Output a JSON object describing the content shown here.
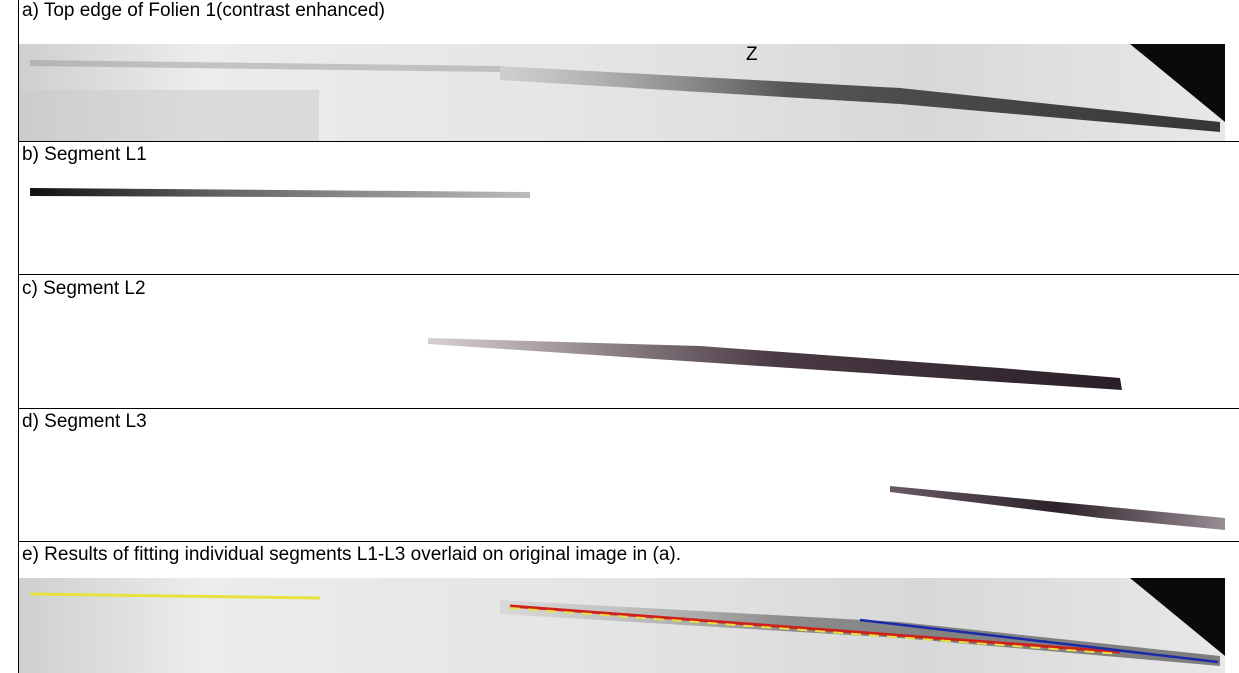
{
  "panels": [
    {
      "label": "a) Top edge of Folien 1(contrast enhanced)",
      "annotation": "Z"
    },
    {
      "label": "b) Segment L1"
    },
    {
      "label": "c) Segment L2"
    },
    {
      "label": "d) Segment L3"
    },
    {
      "label": "e) Results of fitting individual segments L1-L3 overlaid on original image in (a)."
    }
  ]
}
